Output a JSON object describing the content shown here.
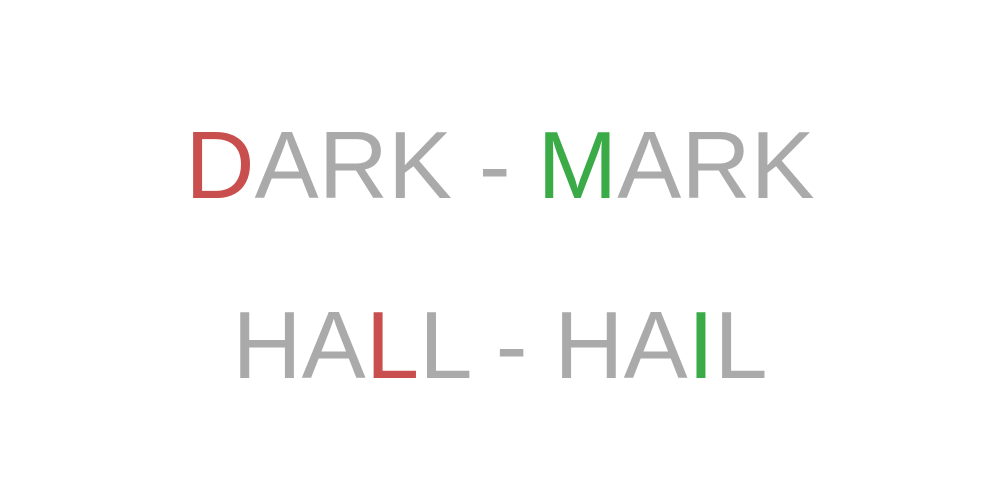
{
  "colors": {
    "neutral": "#aaaaaa",
    "removed": "#c94f4f",
    "added": "#3aab47"
  },
  "rows": [
    {
      "segments": [
        {
          "text": "D",
          "kind": "removed"
        },
        {
          "text": "ARK - ",
          "kind": "neutral"
        },
        {
          "text": "M",
          "kind": "added"
        },
        {
          "text": "ARK",
          "kind": "neutral"
        }
      ]
    },
    {
      "segments": [
        {
          "text": "HA",
          "kind": "neutral"
        },
        {
          "text": "L",
          "kind": "removed"
        },
        {
          "text": "L - HA",
          "kind": "neutral"
        },
        {
          "text": "I",
          "kind": "added"
        },
        {
          "text": "L",
          "kind": "neutral"
        }
      ]
    }
  ]
}
